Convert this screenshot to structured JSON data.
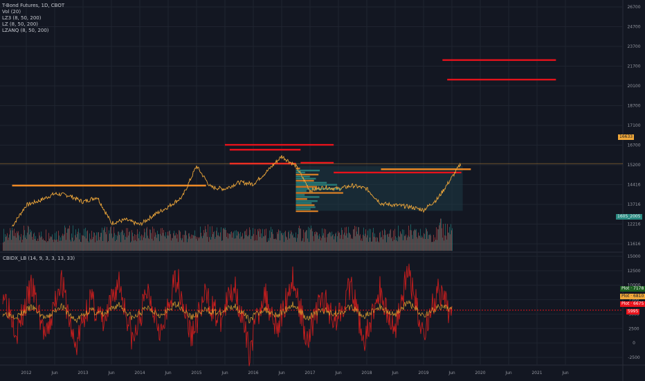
{
  "header": {
    "symbol_line": "T-Bond Futures, 1D, CBOT",
    "indicators": [
      "Vol (20)",
      "LZ3 (8, 50, 200)",
      "LZ (8, 50, 200)",
      "LZANQ (8, 50, 200)"
    ]
  },
  "indicator_panel": {
    "title": "CBIDX_LB (14, 9, 3, 3, 13, 33)"
  },
  "price_axis_labels": [
    "26700",
    "24700",
    "23700",
    "21700",
    "20100",
    "18700",
    "17100",
    "16700",
    "15200",
    "14416",
    "13716",
    "12216",
    "11616"
  ],
  "indicator_axis_labels": [
    "15000",
    "12500",
    "10000",
    "7500",
    "5000",
    "2500",
    "0",
    "-2500"
  ],
  "time_axis_labels": [
    "2012",
    "Jun",
    "2013",
    "Jun",
    "2014",
    "Jun",
    "2015",
    "Jun",
    "2016",
    "Jun",
    "2017",
    "Jun",
    "2018",
    "Jun",
    "2019",
    "Jun",
    "2020",
    "Jun",
    "2021",
    "Jun"
  ],
  "right_tags": {
    "price": "16633",
    "volume": "1605_2005",
    "plot1": "Plot · 7178",
    "plot2": "Plot · 6810",
    "plot3": "Plot · 6675",
    "plot4": "5995"
  },
  "colors": {
    "background": "#131722",
    "price_line": "#f0a83a",
    "level_red": "#e8121b",
    "level_orange": "#f08a24",
    "volume_teal": "#26a69a",
    "volume_red": "#ef5350",
    "volume_profile_box": "#1e3a45",
    "indicator_red": "#c81e1e",
    "indicator_orange": "#e0a030",
    "tag_green": "#1b5e20",
    "tag_orange": "#f0a83a",
    "tag_red": "#e8121b"
  },
  "chart_data": [
    {
      "type": "line",
      "series": [
        {
          "x": [
            "2011-10",
            "2012-01",
            "2012-04",
            "2012-07",
            "2012-10",
            "2013-01",
            "2013-04",
            "2013-07",
            "2013-10",
            "2014-01",
            "2014-04",
            "2014-07",
            "2014-10",
            "2015-01",
            "2015-04",
            "2015-07",
            "2015-10",
            "2016-01",
            "2016-04",
            "2016-07",
            "2016-10",
            "2017-01",
            "2017-04",
            "2017-07",
            "2017-10",
            "2018-01",
            "2018-04",
            "2018-07",
            "2018-10",
            "2019-01",
            "2019-04",
            "2019-07",
            "2019-09"
          ],
          "values": [
            13000,
            14300,
            14600,
            15000,
            14900,
            14500,
            14800,
            13200,
            13400,
            13100,
            13700,
            14200,
            14800,
            16700,
            15400,
            15300,
            15700,
            15600,
            16400,
            17300,
            16700,
            15200,
            15400,
            15300,
            15500,
            15300,
            14400,
            14300,
            14200,
            14000,
            14700,
            16000,
            16900
          ]
        }
      ],
      "horizontal_levels": [
        15500,
        16900,
        17700,
        18000,
        16850,
        16300,
        16500,
        22000,
        23200
      ],
      "ylim": [
        11500,
        26800
      ],
      "grid": true
    },
    {
      "type": "bar",
      "series": [
        {
          "name": "Vol",
          "values": [
            12800,
            12900,
            12700,
            12850,
            12950,
            12800,
            12700,
            12900,
            12800,
            12750,
            12850,
            12900,
            12700,
            12800,
            12950,
            12850,
            12700,
            12900,
            12800,
            12850,
            12750,
            12900,
            12800,
            12700,
            12850,
            12900,
            12800,
            12750,
            12950,
            12800,
            12850,
            13200
          ]
        }
      ],
      "grid": true
    },
    {
      "type": "line",
      "series": [
        {
          "values": [
            9500,
            2500,
            10000,
            1000,
            11500,
            -500,
            8000,
            3500,
            11000,
            500,
            9500,
            2000,
            12000,
            1500,
            8500,
            4000,
            10500,
            -1000,
            9000,
            3000,
            11500,
            1200,
            8000,
            4500,
            10000,
            500,
            9500,
            2500,
            12500,
            2000,
            9000,
            5000
          ]
        },
        {
          "values": [
            5500,
            5000,
            6500,
            4500,
            6800,
            4200,
            6000,
            5200,
            7000,
            4600,
            6500,
            5000,
            7200,
            4800,
            6000,
            5500,
            6800,
            4400,
            6200,
            5100,
            7000,
            4700,
            6000,
            5400,
            6500,
            4900,
            6600,
            5200,
            7300,
            5100,
            6400,
            6200
          ]
        }
      ],
      "horizontal_levels": [
        5995
      ],
      "ylim": [
        -3000,
        15500
      ],
      "grid": true
    }
  ]
}
